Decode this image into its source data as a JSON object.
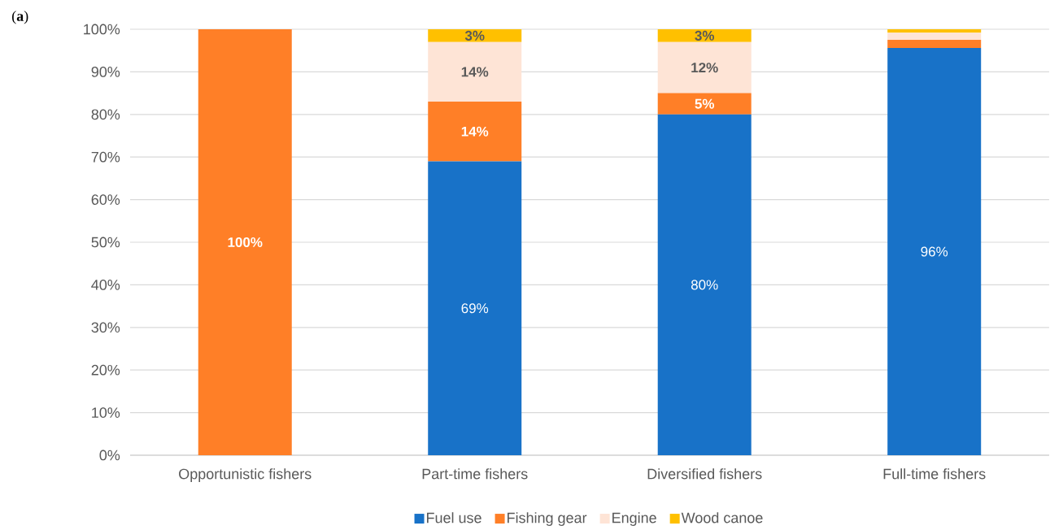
{
  "chart_data": {
    "type": "bar",
    "stacked": true,
    "annotations": [
      "(**a**)"
    ],
    "categories": [
      "Opportunistic fishers",
      "Part-time fishers",
      "Diversified fishers",
      "Full-time fishers"
    ],
    "series": [
      {
        "name": "Fuel use",
        "color": "#1872c8",
        "values": [
          0,
          69,
          80,
          95.6
        ],
        "value_labels": [
          null,
          "69%",
          "80%",
          "96%"
        ]
      },
      {
        "name": "Fishing gear",
        "color": "#ff7f27",
        "values": [
          100,
          14,
          5,
          1.9
        ],
        "value_labels": [
          "100%",
          "14%",
          "5%",
          null
        ]
      },
      {
        "name": "Engine",
        "color": "#fee4d6",
        "values": [
          0,
          14,
          12,
          1.7
        ],
        "value_labels": [
          null,
          "14%",
          "12%",
          null
        ]
      },
      {
        "name": "Wood canoe",
        "color": "#ffc000",
        "values": [
          0,
          3,
          3,
          0.8
        ],
        "value_labels": [
          null,
          "3%",
          "3%",
          null
        ]
      }
    ],
    "ylim": [
      0,
      100
    ],
    "yticks": [
      {
        "value": 0,
        "label": "0%"
      },
      {
        "value": 10,
        "label": "10%"
      },
      {
        "value": 20,
        "label": "20%"
      },
      {
        "value": 30,
        "label": "30%"
      },
      {
        "value": 40,
        "label": "40%"
      },
      {
        "value": 50,
        "label": "50%"
      },
      {
        "value": 60,
        "label": "60%"
      },
      {
        "value": 70,
        "label": "70%"
      },
      {
        "value": 80,
        "label": "80%"
      },
      {
        "value": 90,
        "label": "90%"
      },
      {
        "value": 100,
        "label": "100%"
      }
    ],
    "grid": "y",
    "legend": "bottom"
  }
}
